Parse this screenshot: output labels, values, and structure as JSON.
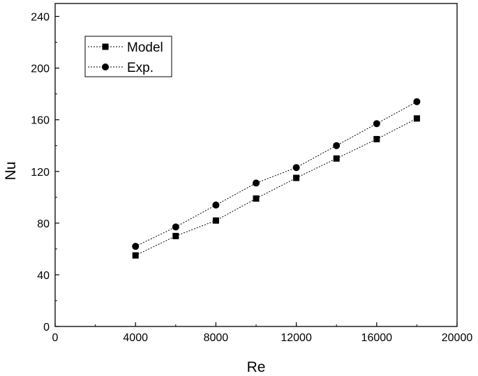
{
  "chart_data": {
    "type": "line",
    "title": "",
    "xlabel": "Re",
    "ylabel": "Nu",
    "xlim": [
      0,
      20000
    ],
    "ylim": [
      0,
      250
    ],
    "xticks": [
      0,
      4000,
      8000,
      12000,
      16000,
      20000
    ],
    "yticks": [
      0,
      40,
      80,
      120,
      160,
      200,
      240
    ],
    "xtick_labels": [
      "0",
      "4000",
      "8000",
      "12000",
      "16000",
      "20000"
    ],
    "ytick_labels": [
      "0",
      "40",
      "80",
      "120",
      "160",
      "200",
      "240"
    ],
    "grid": false,
    "legend_position": "top-left",
    "series": [
      {
        "name": "Model",
        "marker": "square",
        "line_style": "dotted",
        "color": "#000000",
        "x": [
          4000,
          6000,
          8000,
          10000,
          12000,
          14000,
          16000,
          18000
        ],
        "y": [
          55,
          70,
          82,
          99,
          115,
          130,
          145,
          161
        ]
      },
      {
        "name": "Exp.",
        "marker": "circle",
        "line_style": "dotted",
        "color": "#000000",
        "x": [
          4000,
          6000,
          8000,
          10000,
          12000,
          14000,
          16000,
          18000
        ],
        "y": [
          62,
          77,
          94,
          111,
          123,
          140,
          157,
          174
        ]
      }
    ]
  }
}
